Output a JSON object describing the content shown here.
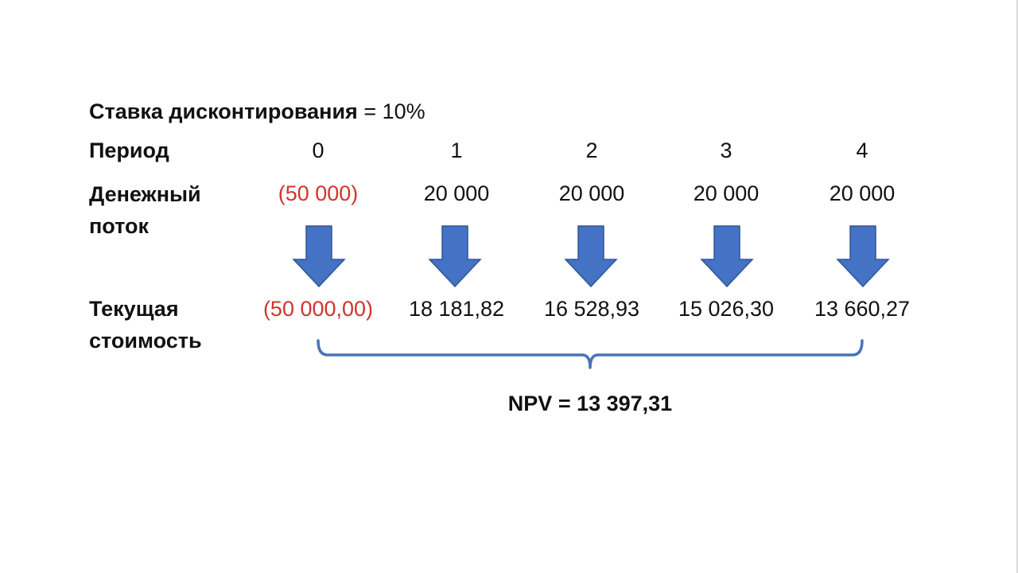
{
  "rate": {
    "label": "Ставка дисконтирования",
    "value": "= 10%"
  },
  "rows": {
    "period_label": "Период",
    "cashflow_label_line1": "Денежный",
    "cashflow_label_line2": "поток",
    "pv_label_line1": "Текущая",
    "pv_label_line2": "стоимость"
  },
  "columns": [
    {
      "period": "0",
      "cashflow": "(50 000)",
      "pv": "(50 000,00)",
      "negative": true
    },
    {
      "period": "1",
      "cashflow": "20 000",
      "pv": "18 181,82",
      "negative": false
    },
    {
      "period": "2",
      "cashflow": "20 000",
      "pv": "16 528,93",
      "negative": false
    },
    {
      "period": "3",
      "cashflow": "20 000",
      "pv": "15 026,30",
      "negative": false
    },
    {
      "period": "4",
      "cashflow": "20 000",
      "pv": "13 660,27",
      "negative": false
    }
  ],
  "npv": "NPV = 13 397,31",
  "colors": {
    "arrow": "#4472c4",
    "arrow_border": "#2f5597",
    "bracket": "#4a72b8",
    "negative": "#d0342c"
  }
}
